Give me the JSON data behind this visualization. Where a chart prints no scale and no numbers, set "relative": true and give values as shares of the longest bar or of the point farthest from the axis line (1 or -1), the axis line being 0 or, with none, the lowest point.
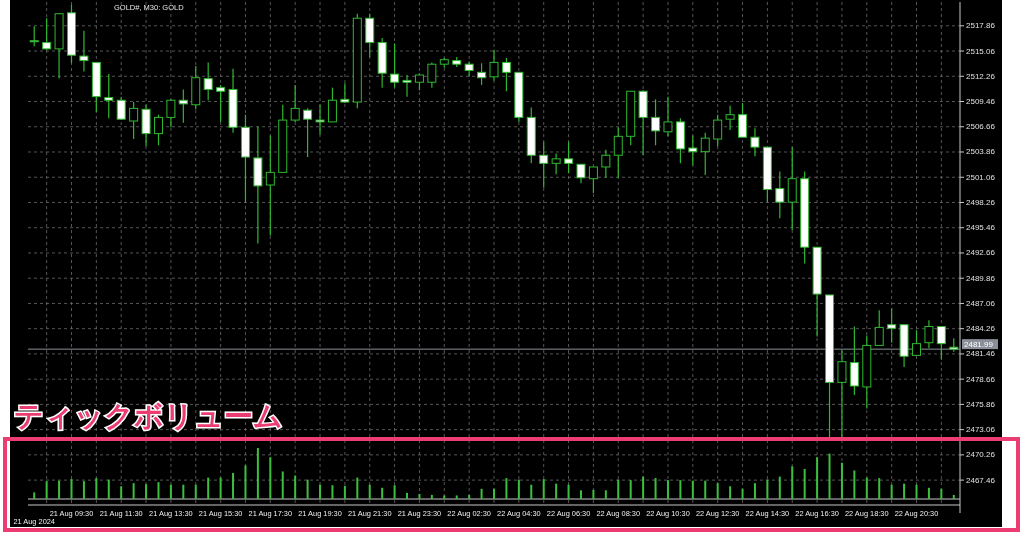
{
  "chart_data": [
    {
      "type": "candlestick",
      "title": "GOLD#, M30: GOLD",
      "categories": [
        "21 Aug 2024",
        null,
        null,
        "21 Aug 09:30",
        null,
        null,
        null,
        "21 Aug 11:30",
        null,
        null,
        null,
        "21 Aug 13:30",
        null,
        null,
        null,
        "21 Aug 15:30",
        null,
        null,
        null,
        "21 Aug 17:30",
        null,
        null,
        null,
        "21 Aug 19:30",
        null,
        null,
        null,
        "21 Aug 21:30",
        null,
        null,
        null,
        "21 Aug 23:30",
        null,
        null,
        null,
        "22 Aug 02:30",
        null,
        null,
        null,
        "22 Aug 04:30",
        null,
        null,
        null,
        "22 Aug 06:30",
        null,
        null,
        null,
        "22 Aug 08:30",
        null,
        null,
        null,
        "22 Aug 10:30",
        null,
        null,
        null,
        "22 Aug 12:30",
        null,
        null,
        null,
        "22 Aug 14:30",
        null,
        null,
        null,
        "22 Aug 16:30",
        null,
        null,
        null,
        "22 Aug 18:30",
        null,
        null,
        null,
        "22 Aug 20:30",
        null,
        null,
        null
      ],
      "ohlc": [
        [
          2516.2,
          2517.8,
          2515.6,
          2516.1
        ],
        [
          2516.0,
          2518.7,
          2515.2,
          2515.3
        ],
        [
          2515.3,
          2519.2,
          2512.0,
          2519.2
        ],
        [
          2519.3,
          2520.2,
          2513.7,
          2514.6
        ],
        [
          2514.5,
          2517.3,
          2512.8,
          2514.0
        ],
        [
          2513.8,
          2513.8,
          2508.3,
          2510.0
        ],
        [
          2509.9,
          2512.5,
          2507.6,
          2509.6
        ],
        [
          2509.6,
          2510.0,
          2507.4,
          2507.5
        ],
        [
          2507.3,
          2509.4,
          2505.3,
          2508.7
        ],
        [
          2508.6,
          2509.1,
          2504.5,
          2505.9
        ],
        [
          2505.9,
          2508.0,
          2504.6,
          2507.7
        ],
        [
          2507.7,
          2509.7,
          2506.6,
          2509.6
        ],
        [
          2509.6,
          2510.8,
          2507.1,
          2509.2
        ],
        [
          2509.1,
          2513.4,
          2508.6,
          2512.1
        ],
        [
          2512.0,
          2513.8,
          2509.6,
          2510.8
        ],
        [
          2511.0,
          2511.3,
          2507.2,
          2510.6
        ],
        [
          2510.8,
          2513.1,
          2506.0,
          2506.6
        ],
        [
          2506.6,
          2508.0,
          2498.3,
          2503.3
        ],
        [
          2503.2,
          2506.7,
          2493.7,
          2500.1
        ],
        [
          2500.2,
          2505.7,
          2494.6,
          2501.6
        ],
        [
          2501.6,
          2509.1,
          2501.6,
          2507.4
        ],
        [
          2507.4,
          2511.3,
          2507.2,
          2508.7
        ],
        [
          2508.5,
          2508.7,
          2503.3,
          2507.5
        ],
        [
          2507.4,
          2509.1,
          2505.8,
          2507.2
        ],
        [
          2507.2,
          2511.0,
          2507.2,
          2509.6
        ],
        [
          2509.7,
          2511.5,
          2509.3,
          2509.4
        ],
        [
          2509.4,
          2519.2,
          2508.7,
          2518.7
        ],
        [
          2518.7,
          2519.2,
          2514.4,
          2516.0
        ],
        [
          2516.0,
          2516.5,
          2511.0,
          2512.6
        ],
        [
          2512.5,
          2515.9,
          2511.0,
          2511.6
        ],
        [
          2511.8,
          2512.4,
          2510.0,
          2511.6
        ],
        [
          2511.6,
          2512.6,
          2510.7,
          2512.4
        ],
        [
          2511.6,
          2513.8,
          2511.0,
          2513.6
        ],
        [
          2513.6,
          2514.3,
          2513.2,
          2514.1
        ],
        [
          2514.0,
          2514.4,
          2513.3,
          2513.6
        ],
        [
          2513.6,
          2513.9,
          2512.3,
          2512.9
        ],
        [
          2512.7,
          2513.7,
          2511.3,
          2512.1
        ],
        [
          2512.2,
          2515.2,
          2511.8,
          2513.8
        ],
        [
          2513.8,
          2514.3,
          2510.6,
          2512.7
        ],
        [
          2512.7,
          2512.7,
          2507.2,
          2507.7
        ],
        [
          2507.7,
          2508.8,
          2502.6,
          2503.5
        ],
        [
          2503.5,
          2505.0,
          2499.9,
          2502.6
        ],
        [
          2502.6,
          2503.7,
          2501.4,
          2503.1
        ],
        [
          2503.1,
          2505.0,
          2501.5,
          2502.6
        ],
        [
          2502.5,
          2502.5,
          2500.4,
          2501.0
        ],
        [
          2500.9,
          2502.2,
          2499.3,
          2502.2
        ],
        [
          2502.2,
          2504.1,
          2501.0,
          2503.5
        ],
        [
          2503.5,
          2506.6,
          2501.0,
          2505.6
        ],
        [
          2505.6,
          2510.6,
          2504.6,
          2510.6
        ],
        [
          2510.6,
          2510.7,
          2503.5,
          2507.7
        ],
        [
          2507.7,
          2509.7,
          2504.6,
          2506.2
        ],
        [
          2506.1,
          2510.0,
          2505.6,
          2507.2
        ],
        [
          2507.2,
          2507.6,
          2502.6,
          2504.2
        ],
        [
          2504.3,
          2505.7,
          2502.4,
          2503.9
        ],
        [
          2503.9,
          2506.0,
          2501.3,
          2505.4
        ],
        [
          2505.3,
          2508.0,
          2504.5,
          2507.4
        ],
        [
          2507.5,
          2509.0,
          2506.3,
          2508.0
        ],
        [
          2508.0,
          2509.3,
          2505.5,
          2505.5
        ],
        [
          2505.5,
          2506.5,
          2503.4,
          2504.4
        ],
        [
          2504.4,
          2504.4,
          2498.3,
          2499.7
        ],
        [
          2499.8,
          2501.7,
          2496.5,
          2498.3
        ],
        [
          2498.3,
          2504.4,
          2495.2,
          2500.9
        ],
        [
          2500.9,
          2501.7,
          2491.5,
          2493.3
        ],
        [
          2493.3,
          2493.3,
          2483.4,
          2488.1
        ],
        [
          2488.0,
          2488.0,
          2472.2,
          2478.3
        ],
        [
          2478.3,
          2481.9,
          2471.9,
          2480.6
        ],
        [
          2480.5,
          2484.5,
          2476.9,
          2477.9
        ],
        [
          2477.8,
          2483.5,
          2475.4,
          2482.4
        ],
        [
          2482.4,
          2486.3,
          2482.4,
          2484.4
        ],
        [
          2484.7,
          2486.5,
          2482.7,
          2484.3
        ],
        [
          2484.7,
          2484.7,
          2480.0,
          2481.2
        ],
        [
          2481.3,
          2484.1,
          2481.3,
          2482.6
        ],
        [
          2482.7,
          2485.2,
          2482.1,
          2484.5
        ],
        [
          2484.5,
          2484.5,
          2480.8,
          2482.6
        ],
        [
          2482.2,
          2483.2,
          2481.7,
          2481.99
        ]
      ],
      "color": "#2fb82f",
      "ylim": [
        2464.7,
        2520.5
      ],
      "yticks": [
        2517.86,
        2515.06,
        2512.26,
        2509.46,
        2506.66,
        2503.86,
        2501.06,
        2498.26,
        2495.46,
        2492.66,
        2489.86,
        2487.06,
        2484.26,
        2481.46,
        2478.66,
        2475.86,
        2473.06,
        2470.26,
        2467.46
      ],
      "ref_lines": [
        {
          "axis": "y",
          "value": 2481.99,
          "label": "2481.99",
          "color": "#8a8f99"
        }
      ],
      "grid": true,
      "annotations": [
        "ティックボリューム"
      ]
    },
    {
      "type": "bar",
      "relative": true,
      "color": "#3cbf3c",
      "categories": [
        null,
        null,
        null,
        null,
        null,
        null,
        null,
        null,
        null,
        null,
        null,
        null,
        null,
        null,
        null,
        null,
        null,
        null,
        null,
        null,
        null,
        null,
        null,
        null,
        null,
        null,
        null,
        null,
        null,
        null,
        null,
        null,
        null,
        null,
        null,
        null,
        null,
        null,
        null,
        null,
        null,
        null,
        null,
        null,
        null,
        null,
        null,
        null,
        null,
        null,
        null,
        null,
        null,
        null,
        null,
        null,
        null,
        null,
        null,
        null,
        null,
        null,
        null,
        null,
        null,
        null,
        null,
        null,
        null,
        null,
        null,
        null,
        null,
        null,
        null
      ],
      "values": [
        0.13,
        0.35,
        0.36,
        0.39,
        0.35,
        0.41,
        0.38,
        0.25,
        0.31,
        0.29,
        0.33,
        0.28,
        0.28,
        0.28,
        0.42,
        0.42,
        0.51,
        0.66,
        1,
        0.82,
        0.54,
        0.46,
        0.38,
        0.28,
        0.27,
        0.26,
        0.42,
        0.28,
        0.22,
        0.27,
        0.12,
        0.1,
        0.08,
        0.07,
        0.07,
        0.08,
        0.2,
        0.2,
        0.41,
        0.38,
        0.28,
        0.39,
        0.3,
        0.28,
        0.17,
        0.18,
        0.17,
        0.38,
        0.37,
        0.44,
        0.41,
        0.37,
        0.37,
        0.36,
        0.36,
        0.31,
        0.25,
        0.2,
        0.31,
        0.38,
        0.44,
        0.64,
        0.59,
        0.82,
        0.89,
        0.71,
        0.56,
        0.42,
        0.41,
        0.28,
        0.3,
        0.28,
        0.22,
        0.2,
        0.08
      ]
    }
  ]
}
